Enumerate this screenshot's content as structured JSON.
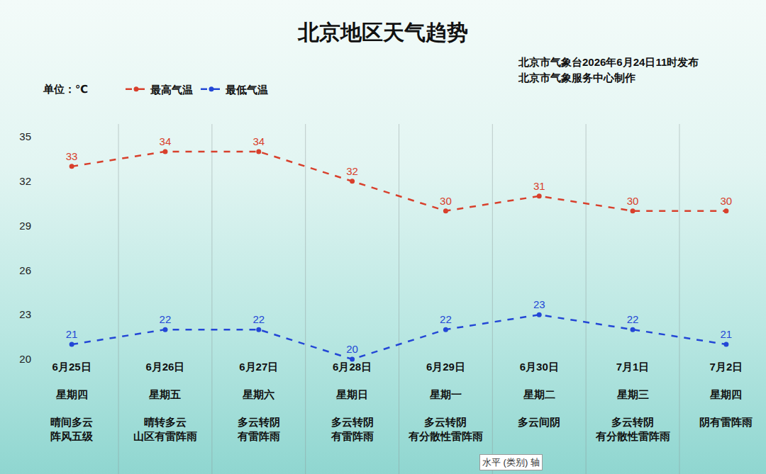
{
  "chart_data": {
    "type": "line",
    "title": "北京地区天气趋势",
    "subtitle": [
      "北京市气象台2026年6月24日11时发布",
      "北京市气象服务中心制作"
    ],
    "unit_label": "单位：℃",
    "categories": [
      "6月25日",
      "6月26日",
      "6月27日",
      "6月28日",
      "6月29日",
      "6月30日",
      "7月1日",
      "7月2日"
    ],
    "weekdays": [
      "星期四",
      "星期五",
      "星期六",
      "星期日",
      "星期一",
      "星期二",
      "星期三",
      "星期四"
    ],
    "weather": [
      [
        "晴间多云",
        "阵风五级"
      ],
      [
        "晴转多云",
        "山区有雷阵雨"
      ],
      [
        "多云转阴",
        "有雷阵雨"
      ],
      [
        "多云转阴",
        "有雷阵雨"
      ],
      [
        "多云转阴",
        "有分散性雷阵雨"
      ],
      [
        "多云间阴"
      ],
      [
        "多云转阴",
        "有分散性雷阵雨"
      ],
      [
        "阴有雷阵雨"
      ]
    ],
    "series": [
      {
        "name": "最高气温",
        "color": "#d8402c",
        "values": [
          33,
          34,
          34,
          32,
          30,
          31,
          30,
          30
        ],
        "line_style": "dashed",
        "marker": "circle"
      },
      {
        "name": "最低气温",
        "color": "#2347d6",
        "values": [
          21,
          22,
          22,
          20,
          22,
          23,
          22,
          21
        ],
        "line_style": "dashed",
        "marker": "circle"
      }
    ],
    "ylim": [
      20,
      35
    ],
    "yticks": [
      20,
      23,
      26,
      29,
      32,
      35
    ],
    "grid": false,
    "legend": "top-left",
    "data_labels": true,
    "annotations": [
      "水平 (类别) 轴"
    ]
  }
}
